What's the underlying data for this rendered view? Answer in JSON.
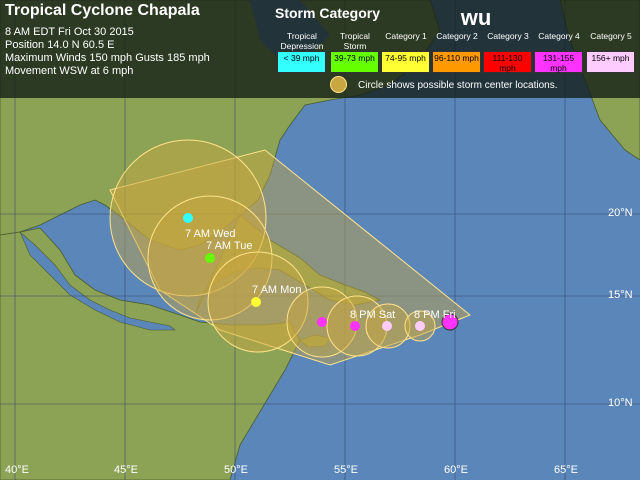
{
  "header": {
    "title": "Tropical Cyclone Chapala",
    "time": "8 AM EDT Fri Oct 30 2015",
    "position": "Position 14.0 N 60.5 E",
    "winds": "Maximum Winds 150 mph  Gusts 185 mph",
    "movement": "Movement WSW at 6 mph"
  },
  "legend": {
    "heading": "Storm Category",
    "logo_text": "wu",
    "categories": [
      {
        "label": "Tropical Depression",
        "range": "< 39 mph",
        "color": "#33ffff"
      },
      {
        "label": "Tropical Storm",
        "range": "39-73 mph",
        "color": "#66ff00"
      },
      {
        "label": "Category 1",
        "range": "74-95 mph",
        "color": "#ffff33"
      },
      {
        "label": "Category 2",
        "range": "96-110 mph",
        "color": "#ff9900"
      },
      {
        "label": "Category 3",
        "range": "111-130 mph",
        "color": "#ff0000"
      },
      {
        "label": "Category 4",
        "range": "131-155 mph",
        "color": "#ff33ff"
      },
      {
        "label": "Category 5",
        "range": "156+ mph",
        "color": "#ffccff"
      }
    ],
    "circle_note": "Circle shows possible storm center locations."
  },
  "map": {
    "lon_labels": [
      "40°E",
      "45°E",
      "50°E",
      "55°E",
      "60°E",
      "65°E"
    ],
    "lat_labels": [
      "20°N",
      "15°N",
      "10°N"
    ],
    "track_labels": [
      "7 AM Wed",
      "7 AM Tue",
      "7 AM Mon",
      "8 PM Sat",
      "8 PM Fri"
    ],
    "colors": {
      "ocean": "#5a86ba",
      "land": "#8ca356",
      "cone": "#c8a640"
    }
  }
}
